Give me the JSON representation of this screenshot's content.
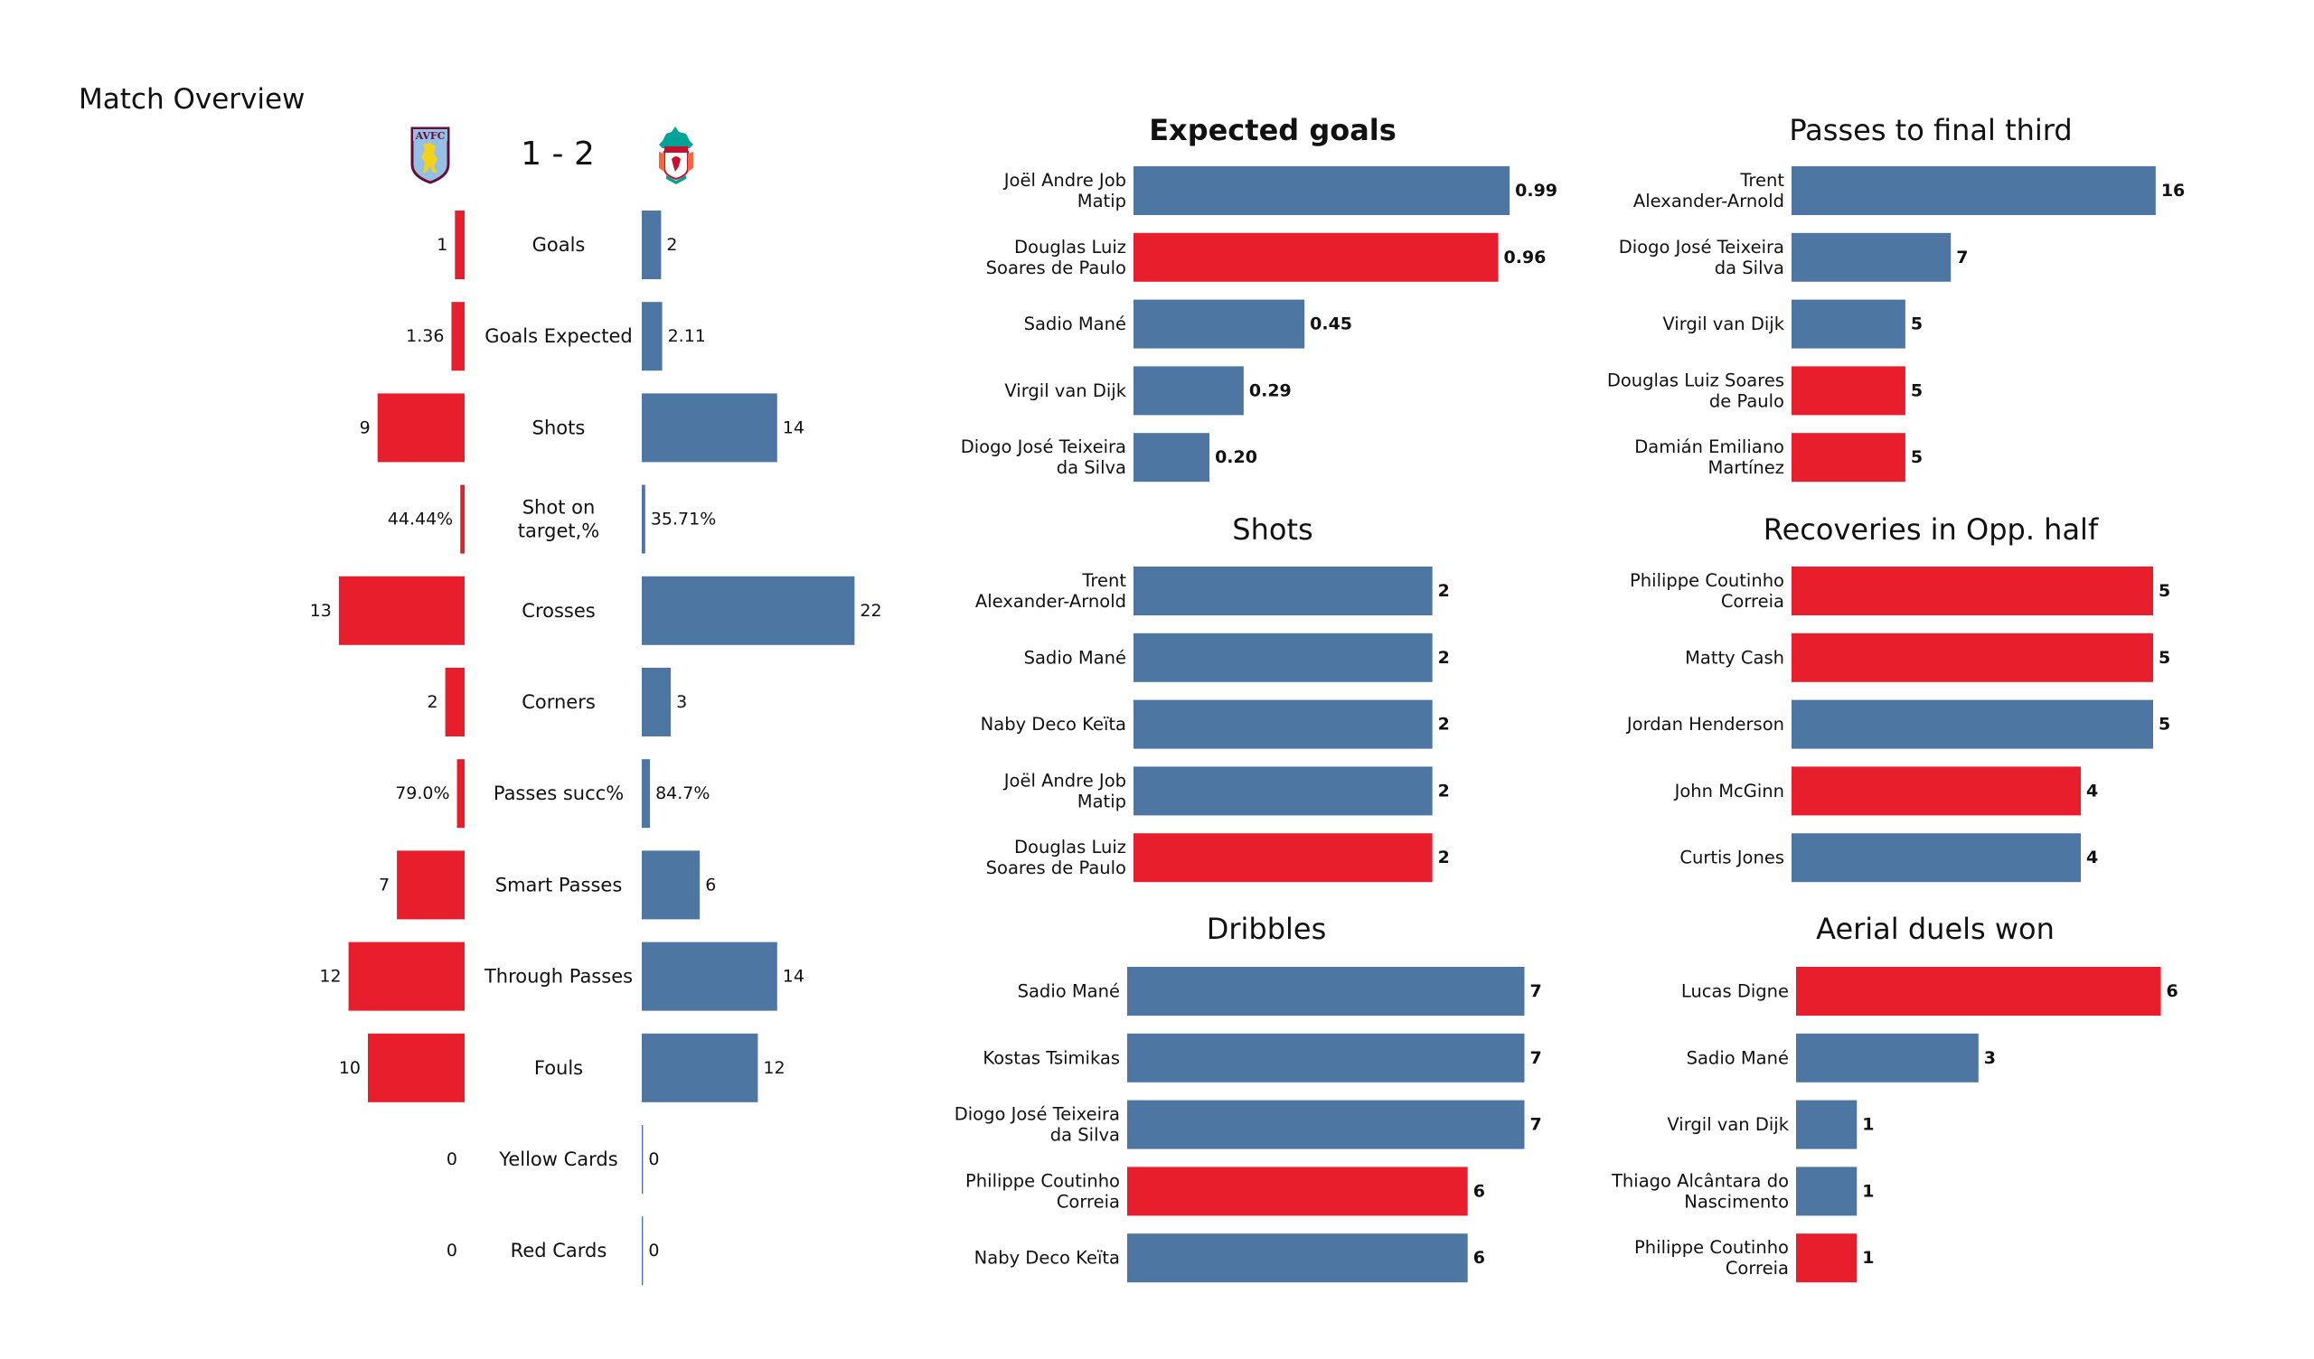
{
  "page": {
    "title": "Match Overview"
  },
  "colors": {
    "home": "#E81E2C",
    "away": "#4E76A3",
    "text": "#111111",
    "background": "#FFFFFF"
  },
  "match": {
    "home_team": "Aston Villa",
    "away_team": "Liverpool",
    "home_crest": "aston-villa-crest-icon",
    "away_crest": "liverpool-crest-icon",
    "home_crest_text": "AVFC",
    "score": "1 - 2"
  },
  "chart_data": [
    {
      "id": "match-overview",
      "type": "bar",
      "orientation": "diverging-horizontal",
      "title": "Match Overview",
      "series": [
        {
          "name": "Aston Villa",
          "color": "#E81E2C"
        },
        {
          "name": "Liverpool",
          "color": "#4E76A3"
        }
      ],
      "categories": [
        "Goals",
        "Goals Expected",
        "Shots",
        "Shot on target,%",
        "Crosses",
        "Corners",
        "Passes succ%",
        "Smart Passes",
        "Through Passes",
        "Fouls",
        "Yellow Cards",
        "Red Cards"
      ],
      "rows": [
        {
          "label": "Goals",
          "home": 1,
          "away": 2,
          "home_text": "1",
          "away_text": "2"
        },
        {
          "label": "Goals Expected",
          "home": 1.36,
          "away": 2.11,
          "home_text": "1.36",
          "away_text": "2.11"
        },
        {
          "label": "Shots",
          "home": 9,
          "away": 14,
          "home_text": "9",
          "away_text": "14"
        },
        {
          "label": "Shot on\ntarget,%",
          "home": 0.4444,
          "away": 0.3571,
          "home_text": "44.44%",
          "away_text": "35.71%"
        },
        {
          "label": "Crosses",
          "home": 13,
          "away": 22,
          "home_text": "13",
          "away_text": "22"
        },
        {
          "label": "Corners",
          "home": 2,
          "away": 3,
          "home_text": "2",
          "away_text": "3"
        },
        {
          "label": "Passes succ%",
          "home": 0.79,
          "away": 0.847,
          "home_text": "79.0%",
          "away_text": "84.7%"
        },
        {
          "label": "Smart Passes",
          "home": 7,
          "away": 6,
          "home_text": "7",
          "away_text": "6"
        },
        {
          "label": "Through Passes",
          "home": 12,
          "away": 14,
          "home_text": "12",
          "away_text": "14"
        },
        {
          "label": "Fouls",
          "home": 10,
          "away": 12,
          "home_text": "10",
          "away_text": "12"
        },
        {
          "label": "Yellow Cards",
          "home": 0,
          "away": 0,
          "home_text": "0",
          "away_text": "0"
        },
        {
          "label": "Red Cards",
          "home": 0,
          "away": 0,
          "home_text": "0",
          "away_text": "0"
        }
      ],
      "xlim": [
        0,
        22
      ]
    },
    {
      "id": "expected-goals",
      "type": "bar",
      "orientation": "horizontal",
      "title": "Expected goals",
      "title_bold": true,
      "categories": [
        "Joël Andre Job\nMatip",
        "Douglas Luiz\nSoares de Paulo",
        "Sadio Mané",
        "Virgil van Dijk",
        "Diogo José Teixeira\nda Silva"
      ],
      "values": [
        0.99,
        0.96,
        0.45,
        0.29,
        0.2
      ],
      "value_labels": [
        "0.99",
        "0.96",
        "0.45",
        "0.29",
        "0.20"
      ],
      "teams": [
        "away",
        "home",
        "away",
        "away",
        "away"
      ],
      "xlim": [
        0,
        1.18
      ],
      "grid": false
    },
    {
      "id": "passes-final-third",
      "type": "bar",
      "orientation": "horizontal",
      "title": "Passes to final third",
      "title_bold": false,
      "categories": [
        "Trent\nAlexander-Arnold",
        "Diogo José Teixeira\nda Silva",
        "Virgil van Dijk",
        "Douglas Luiz Soares\nde Paulo",
        "Damián Emiliano\nMartínez"
      ],
      "values": [
        16,
        7,
        5,
        5,
        5
      ],
      "value_labels": [
        "16",
        "7",
        "5",
        "5",
        "5"
      ],
      "teams": [
        "away",
        "away",
        "away",
        "home",
        "home"
      ],
      "xlim": [
        0,
        19.7
      ],
      "grid": false
    },
    {
      "id": "shots",
      "type": "bar",
      "orientation": "horizontal",
      "title": "Shots",
      "title_bold": false,
      "categories": [
        "Trent\nAlexander-Arnold",
        "Sadio Mané",
        "Naby Deco Keïta",
        "Joël Andre Job\nMatip",
        "Douglas Luiz\nSoares de Paulo"
      ],
      "values": [
        2,
        2,
        2,
        2,
        2
      ],
      "value_labels": [
        "2",
        "2",
        "2",
        "2",
        "2"
      ],
      "teams": [
        "away",
        "away",
        "away",
        "away",
        "home"
      ],
      "xlim": [
        0,
        3.0
      ],
      "grid": false
    },
    {
      "id": "recoveries-opp-half",
      "type": "bar",
      "orientation": "horizontal",
      "title": "Recoveries in Opp. half",
      "title_bold": false,
      "categories": [
        "Philippe Coutinho\nCorreia",
        "Matty Cash",
        "Jordan Henderson",
        "John McGinn",
        "Curtis Jones"
      ],
      "values": [
        5,
        5,
        5,
        4,
        4
      ],
      "value_labels": [
        "5",
        "5",
        "5",
        "4",
        "4"
      ],
      "teams": [
        "home",
        "home",
        "away",
        "home",
        "away"
      ],
      "xlim": [
        0,
        6.2
      ],
      "grid": false
    },
    {
      "id": "dribbles",
      "type": "bar",
      "orientation": "horizontal",
      "title": "Dribbles",
      "title_bold": false,
      "categories": [
        "Sadio Mané",
        "Kostas Tsimikas",
        "Diogo José Teixeira\nda Silva",
        "Philippe Coutinho\nCorreia",
        "Naby Deco Keïta"
      ],
      "values": [
        7,
        7,
        7,
        6,
        6
      ],
      "value_labels": [
        "7",
        "7",
        "7",
        "6",
        "6"
      ],
      "teams": [
        "away",
        "away",
        "away",
        "home",
        "away"
      ],
      "xlim": [
        0,
        7.9
      ],
      "grid": false
    },
    {
      "id": "aerial-duels-won",
      "type": "bar",
      "orientation": "horizontal",
      "title": "Aerial duels won",
      "title_bold": false,
      "categories": [
        "Lucas Digne",
        "Sadio Mané",
        "Virgil van Dijk",
        "Thiago Alcântara do\nNascimento",
        "Philippe Coutinho\nCorreia"
      ],
      "values": [
        6,
        3,
        1,
        1,
        1
      ],
      "value_labels": [
        "6",
        "3",
        "1",
        "1",
        "1"
      ],
      "teams": [
        "home",
        "away",
        "away",
        "away",
        "home"
      ],
      "xlim": [
        0,
        7.3
      ],
      "grid": false
    }
  ]
}
